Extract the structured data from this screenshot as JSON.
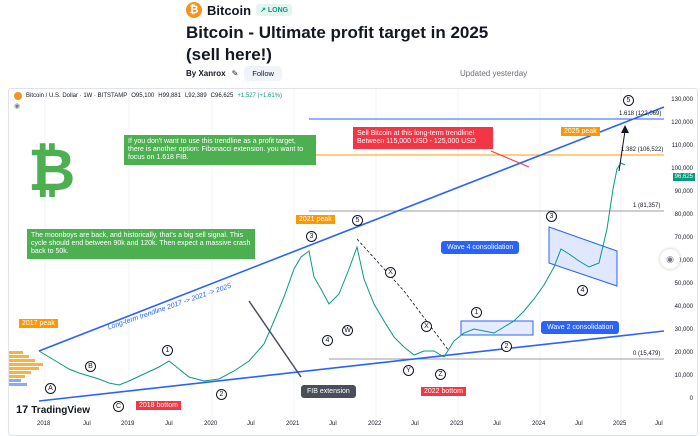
{
  "header": {
    "symbol": "Bitcoin",
    "symbol_glyph": "₿",
    "badge": "LONG",
    "title": "Bitcoin - Ultimate profit target in 2025 (sell here!)",
    "author": "By Xanrox",
    "follow": "Follow",
    "updated": "Updated yesterday"
  },
  "legend": {
    "instrument": "Bitcoin / U.S. Dollar · 1W · BITSTAMP",
    "o": "O95,100",
    "h": "H99,881",
    "l": "L92,389",
    "c": "C96,625",
    "change": "+1,527 (+1.61%)"
  },
  "notes": {
    "fib_note": "If you don't want to use this trendline as a profit target, there is another option: Fibonacci extension. you want to focus on 1.618 FIB.",
    "moonboys": "The moonboys are back, and historically, that's a big sell signal. This cycle should end between 90k and 120k. Then expect a massive crash back to 50k.",
    "sell_note": "Sell Bitcoin at this long-term trendline! Between 115,000 USD - 125,000 USD",
    "trendline": "Long-term trendline 2017 -> 2021 -> 2025"
  },
  "tags": {
    "peak_2017": "2017 peak",
    "peak_2021": "2021 peak",
    "peak_2025": "2025 peak",
    "bottom_2018": "2018 bottom",
    "bottom_2022": "2022 bottom",
    "fib_ext": "FIB extension",
    "wave4": "Wave 4 consolidation",
    "wave2": "Wave 2 consolidation"
  },
  "fib": {
    "f1618": "1.618 (122,069)",
    "f1382": "1.382 (106,522)",
    "f1": "1 (81,357)",
    "f0": "0 (15,479)"
  },
  "price_axis": [
    "130,000",
    "120,000",
    "110,000",
    "100,000",
    "90,000",
    "80,000",
    "70,000",
    "60,000",
    "50,000",
    "40,000",
    "30,000",
    "20,000",
    "10,000",
    "0"
  ],
  "current_price": "96,625",
  "time_axis": [
    "2018",
    "Jul",
    "2019",
    "Jul",
    "2020",
    "Jul",
    "2021",
    "Jul",
    "2022",
    "Jul",
    "2023",
    "Jul",
    "2024",
    "Jul",
    "2025",
    "Jul"
  ],
  "waves": {
    "w5_top": "5",
    "w5_2021": "5",
    "w3_2021": "3",
    "w1_2019": "1",
    "w2_2020": "2",
    "w4_2021": "4",
    "wW": "W",
    "wX1": "X",
    "wX2": "X",
    "wY": "Y",
    "wZ": "Z",
    "wA": "A",
    "wB": "B",
    "wC": "C",
    "w1_2023": "1",
    "w2_2023": "2",
    "w3_2024": "3",
    "w4_2024": "4"
  },
  "branding": "TradingView",
  "branding_glyph": "17",
  "colors": {
    "accent_blue": "#2962ff",
    "up": "#089981",
    "down": "#f23645",
    "orange": "#ff9800",
    "green_note": "#4caf50"
  }
}
